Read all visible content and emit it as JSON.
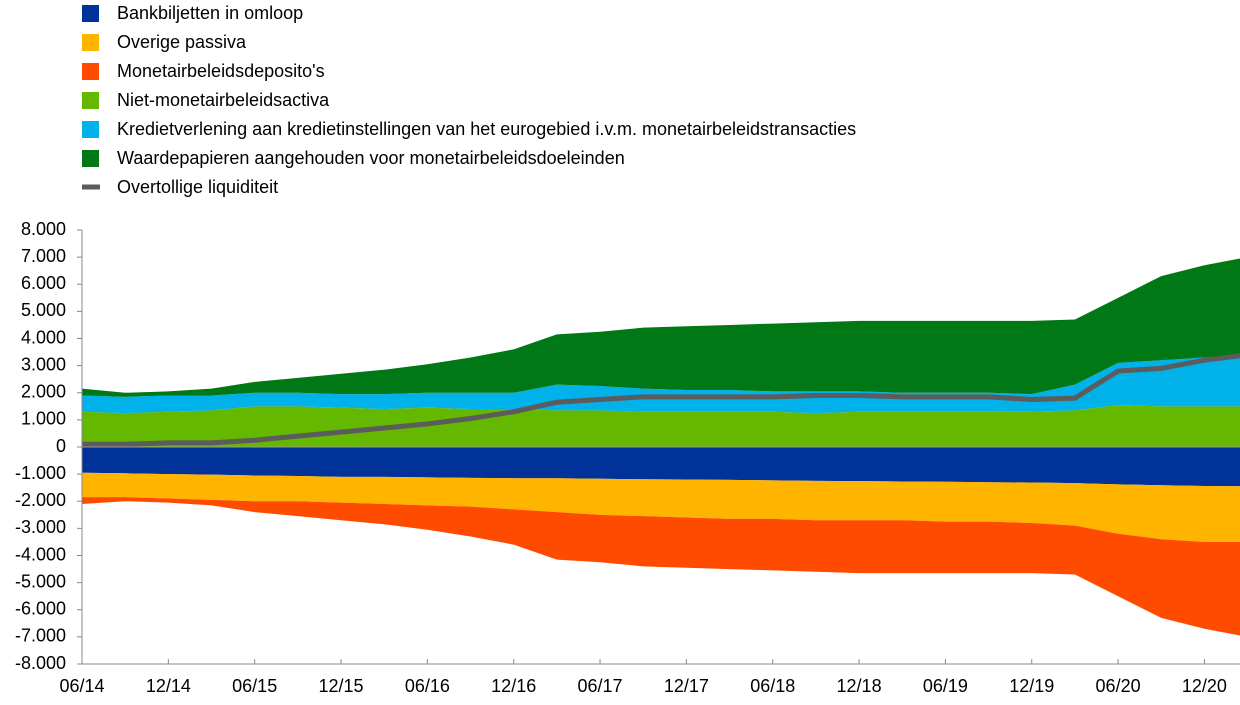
{
  "chart_data": {
    "type": "area",
    "stacked": true,
    "categories": [
      "06/14",
      null,
      "12/14",
      null,
      "06/15",
      null,
      "12/15",
      null,
      "06/16",
      null,
      "12/16",
      null,
      "06/17",
      null,
      "12/17",
      null,
      "06/18",
      null,
      "12/18",
      null,
      "06/19",
      null,
      "12/19",
      null,
      "06/20",
      null,
      "12/20",
      null
    ],
    "series": [
      {
        "name": "Bankbiljetten in omloop",
        "color": "#003299",
        "values": [
          -950,
          -970,
          -1000,
          -1020,
          -1050,
          -1070,
          -1100,
          -1100,
          -1120,
          -1140,
          -1150,
          -1150,
          -1170,
          -1190,
          -1200,
          -1210,
          -1230,
          -1250,
          -1260,
          -1270,
          -1280,
          -1300,
          -1310,
          -1330,
          -1380,
          -1410,
          -1440,
          -1450
        ]
      },
      {
        "name": "Overige passiva",
        "color": "#ffb400",
        "values": [
          -900,
          -880,
          -900,
          -930,
          -950,
          -930,
          -950,
          -1000,
          -1030,
          -1060,
          -1150,
          -1250,
          -1330,
          -1360,
          -1400,
          -1440,
          -1420,
          -1450,
          -1440,
          -1430,
          -1470,
          -1450,
          -1490,
          -1570,
          -1820,
          -1990,
          -2060,
          -2050
        ]
      },
      {
        "name": "Monetairbeleidsdeposito's",
        "color": "#ff4b00",
        "values": [
          -250,
          -150,
          -150,
          -200,
          -400,
          -550,
          -650,
          -750,
          -900,
          -1100,
          -1300,
          -1750,
          -1750,
          -1850,
          -1850,
          -1850,
          -1900,
          -1900,
          -1950,
          -1950,
          -1900,
          -1900,
          -1850,
          -1800,
          -2300,
          -2900,
          -3200,
          -3500
        ]
      },
      {
        "name": "Niet-monetairbeleidsactiva",
        "color": "#65b800",
        "values": [
          1300,
          1250,
          1300,
          1350,
          1500,
          1500,
          1450,
          1400,
          1450,
          1400,
          1400,
          1350,
          1350,
          1300,
          1300,
          1300,
          1300,
          1250,
          1300,
          1300,
          1300,
          1300,
          1300,
          1350,
          1550,
          1500,
          1500,
          1500
        ]
      },
      {
        "name": "Kredietverlening aan kredietinstellingen van het eurogebied i.v.m. monetairbeleidstransacties",
        "color": "#00b1ea",
        "values": [
          600,
          600,
          600,
          550,
          500,
          500,
          500,
          550,
          550,
          600,
          600,
          950,
          900,
          850,
          800,
          800,
          750,
          800,
          750,
          700,
          700,
          700,
          650,
          950,
          1550,
          1700,
          1800,
          1900
        ]
      },
      {
        "name": "Waardepapieren aangehouden voor monetairbeleidsdoeleinden",
        "color": "#007816",
        "values": [
          250,
          150,
          150,
          250,
          400,
          550,
          750,
          900,
          1050,
          1300,
          1600,
          1850,
          2000,
          2250,
          2350,
          2400,
          2500,
          2550,
          2600,
          2650,
          2650,
          2650,
          2700,
          2400,
          2400,
          3100,
          3400,
          3600
        ]
      },
      {
        "name": "Overtollige liquiditeit",
        "color": "#5c5c5c",
        "type": "line",
        "values": [
          100,
          100,
          150,
          150,
          250,
          400,
          550,
          700,
          850,
          1050,
          1300,
          1650,
          1750,
          1850,
          1850,
          1850,
          1850,
          1900,
          1900,
          1850,
          1850,
          1850,
          1750,
          1800,
          2800,
          2900,
          3200,
          3400
        ]
      }
    ],
    "ylim": [
      -8000,
      8000
    ],
    "yticks": [
      {
        "value": 8000,
        "label": "8.000"
      },
      {
        "value": 7000,
        "label": "7.000"
      },
      {
        "value": 6000,
        "label": "6.000"
      },
      {
        "value": 5000,
        "label": "5.000"
      },
      {
        "value": 4000,
        "label": "4.000"
      },
      {
        "value": 3000,
        "label": "3.000"
      },
      {
        "value": 2000,
        "label": "2.000"
      },
      {
        "value": 1000,
        "label": "1.000"
      },
      0,
      {
        "value": -1000,
        "label": "-1.000"
      },
      {
        "value": -2000,
        "label": "-2.000"
      },
      {
        "value": -3000,
        "label": "-3.000"
      },
      {
        "value": -4000,
        "label": "-4.000"
      },
      {
        "value": -5000,
        "label": "-5.000"
      },
      {
        "value": -6000,
        "label": "-6.000"
      },
      {
        "value": -7000,
        "label": "-7.000"
      },
      {
        "value": -8000,
        "label": "-8.000"
      }
    ],
    "legend": "top-left",
    "grid": false
  }
}
